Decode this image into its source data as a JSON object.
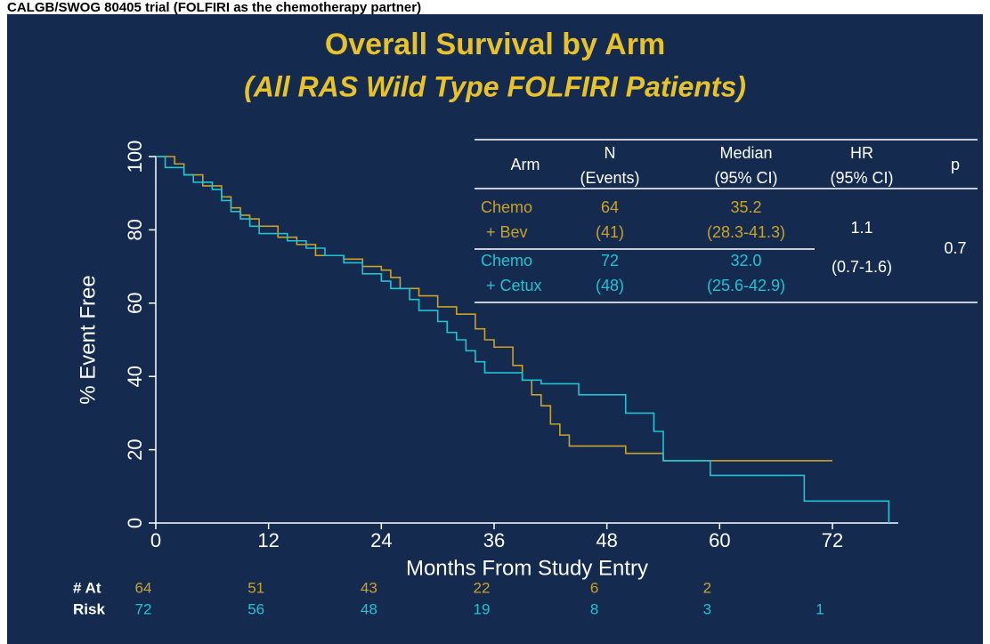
{
  "header": "CALGB/SWOG 80405 trial (FOLFIRI as the chemotherapy partner)",
  "chart_data": {
    "type": "line",
    "step": true,
    "title": "Overall Survival by Arm",
    "subtitle": "(All RAS Wild Type FOLFIRI Patients)",
    "x_label": "Months From Study Entry",
    "y_label": "% Event Free",
    "xlim": [
      0,
      79
    ],
    "xticks": [
      0,
      12,
      24,
      36,
      48,
      60,
      72
    ],
    "ylim": [
      0,
      100
    ],
    "yticks": [
      0,
      20,
      40,
      60,
      80,
      100
    ],
    "series": [
      {
        "name": "Chemo + Bev",
        "color": "#c9a227",
        "x": [
          0,
          2,
          3,
          5,
          7,
          8,
          9,
          10,
          11,
          13,
          15,
          17,
          20,
          22,
          24,
          25,
          26,
          28,
          30,
          32,
          34,
          35,
          36,
          38,
          39,
          40,
          41,
          42,
          43,
          44,
          50,
          54,
          72
        ],
        "values": [
          100,
          98,
          95,
          92,
          89,
          86,
          84,
          83,
          81,
          78,
          76,
          73,
          72,
          70,
          69,
          67,
          64,
          62,
          59,
          57,
          53,
          50,
          48,
          43,
          39,
          35,
          32,
          27,
          24,
          21,
          19,
          17,
          17
        ]
      },
      {
        "name": "Chemo + Cetux",
        "color": "#1fc3d3",
        "x": [
          0,
          1,
          3,
          4,
          6,
          7,
          8,
          9,
          10,
          11,
          14,
          16,
          18,
          20,
          22,
          24,
          25,
          27,
          28,
          30,
          31,
          32,
          33,
          34,
          35,
          39,
          41,
          45,
          50,
          53,
          54,
          59,
          69,
          78
        ],
        "values": [
          100,
          97,
          95,
          93,
          91,
          88,
          85,
          83,
          81,
          79,
          77,
          75,
          73,
          71,
          68,
          66,
          64,
          61,
          58,
          55,
          52,
          50,
          47,
          44,
          41,
          39,
          38,
          35,
          30,
          25,
          17,
          13,
          6,
          0
        ]
      }
    ],
    "table": {
      "columns": [
        [
          "Arm"
        ],
        [
          "N",
          "(Events)"
        ],
        [
          "Median",
          "(95% CI)"
        ],
        [
          "HR",
          "(95% CI)"
        ],
        [
          "p"
        ]
      ],
      "rows": [
        {
          "arm": [
            "Chemo",
            "+ Bev"
          ],
          "n": [
            "64",
            "(41)"
          ],
          "median": [
            "35.2",
            "(28.3-41.3)"
          ]
        },
        {
          "arm": [
            "Chemo",
            "+ Cetux"
          ],
          "n": [
            "72",
            "(48)"
          ],
          "median": [
            "32.0",
            "(25.6-42.9)"
          ]
        }
      ],
      "hr": [
        "1.1",
        "(0.7-1.6)"
      ],
      "p": "0.7"
    },
    "at_risk": {
      "labels": [
        "# At",
        "Risk"
      ],
      "rows": [
        [
          "64",
          "51",
          "43",
          "22",
          "6",
          "2"
        ],
        [
          "72",
          "56",
          "48",
          "19",
          "8",
          "3",
          "1"
        ]
      ]
    }
  }
}
